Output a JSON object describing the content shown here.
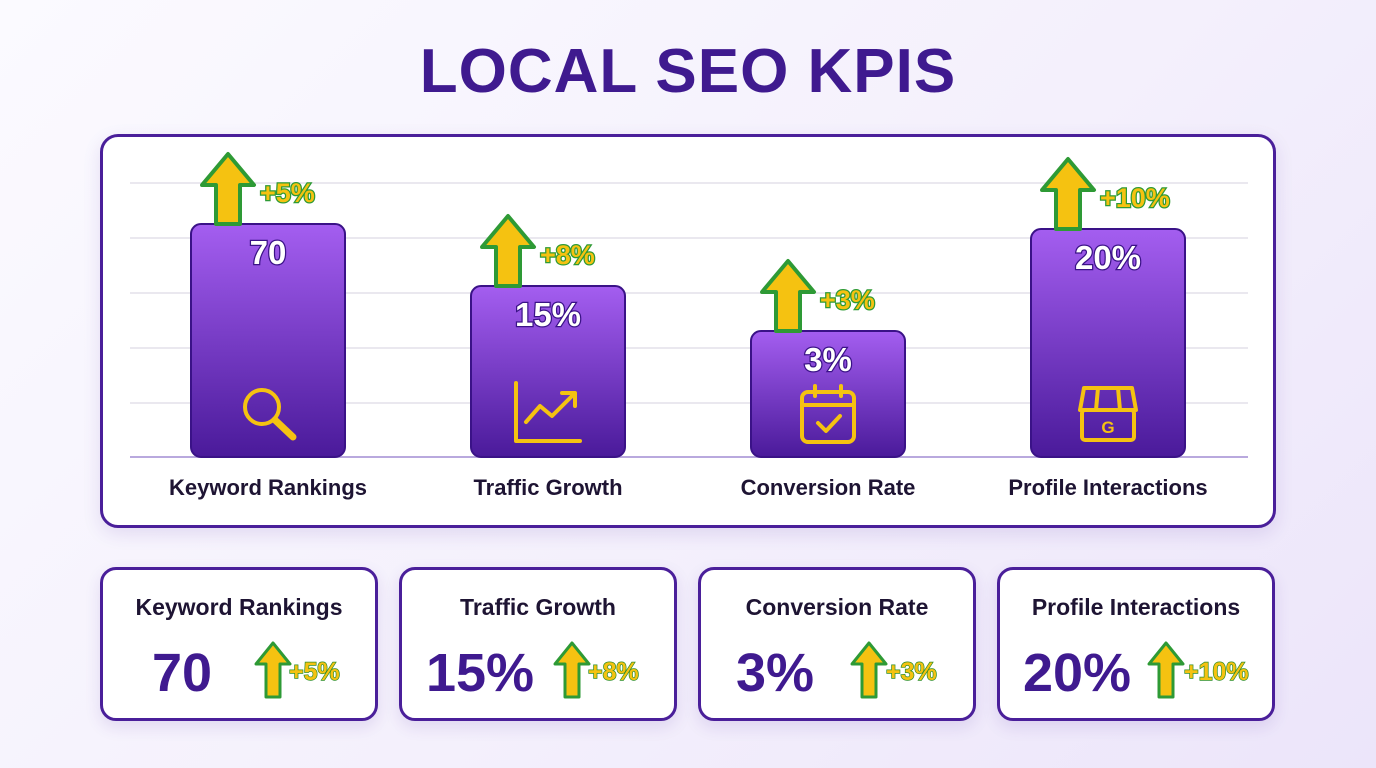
{
  "title": "LOCAL SEO KPIS",
  "colors": {
    "title": "#3f1a8f",
    "bar_top": "#a45ef0",
    "bar_bottom": "#4a1a9a",
    "bar_border": "#3a1287",
    "arrow_fill": "#f5c211",
    "arrow_outline": "#2e9a35",
    "icon": "#f5c211"
  },
  "chart_data": {
    "type": "bar",
    "categories": [
      "Keyword Rankings",
      "Traffic Growth",
      "Conversion Rate",
      "Profile Interactions"
    ],
    "value_labels": [
      "70",
      "15%",
      "3%",
      "20%"
    ],
    "changes": [
      "+5%",
      "+8%",
      "+3%",
      "+10%"
    ],
    "icons": [
      "search-icon",
      "trending-chart-icon",
      "calendar-check-icon",
      "storefront-icon"
    ],
    "grid": true,
    "legend": "none"
  },
  "cards": [
    {
      "title": "Keyword Rankings",
      "value": "70",
      "change": "+5%"
    },
    {
      "title": "Traffic Growth",
      "value": "15%",
      "change": "+8%"
    },
    {
      "title": "Conversion Rate",
      "value": "3%",
      "change": "+3%"
    },
    {
      "title": "Profile Interactions",
      "value": "20%",
      "change": "+10%"
    }
  ]
}
